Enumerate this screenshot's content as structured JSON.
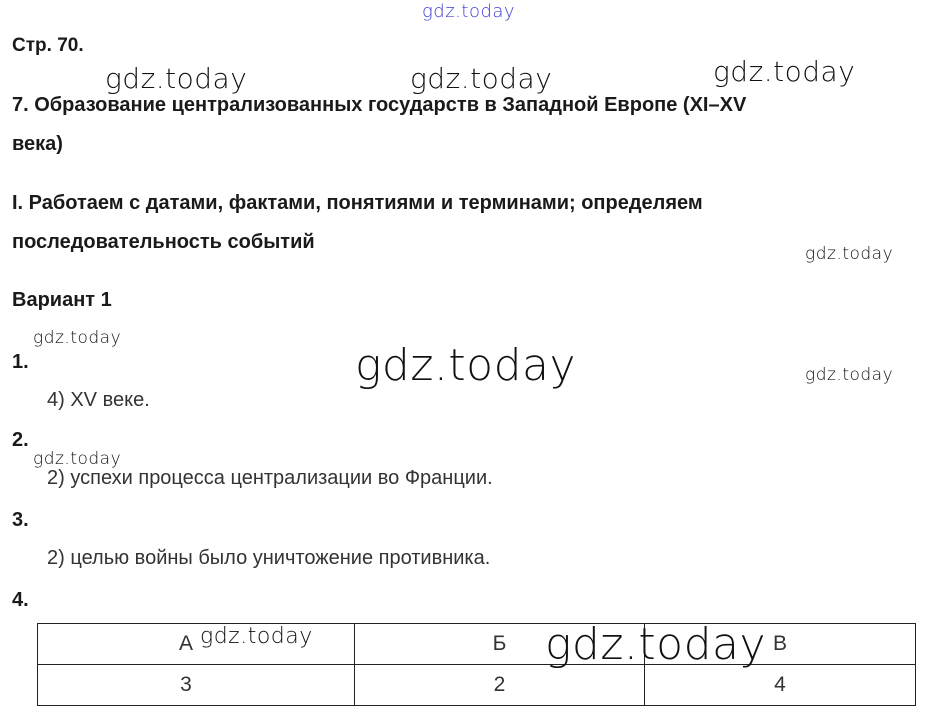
{
  "watermark": "gdz.today",
  "page_ref": "Стр. 70.",
  "title_line1": "7. Образование централизованных государств в Западной Европе (XI–XV",
  "title_line2": "века)",
  "section_line1": "I. Работаем с датами, фактами, понятиями и терминами; определяем",
  "section_line2": "последовательность событий",
  "variant": "Вариант 1",
  "questions": [
    {
      "number": "1.",
      "answer": "4) XV веке."
    },
    {
      "number": "2.",
      "answer": "2) успехи процесса централизации во Франции."
    },
    {
      "number": "3.",
      "answer": "2) целью войны было уничтожение противника."
    },
    {
      "number": "4.",
      "answer": ""
    }
  ],
  "table": {
    "headers": [
      "А",
      "Б",
      "В"
    ],
    "values": [
      "3",
      "2",
      "4"
    ]
  },
  "colors": {
    "top_watermark": "#3b3bd6"
  }
}
